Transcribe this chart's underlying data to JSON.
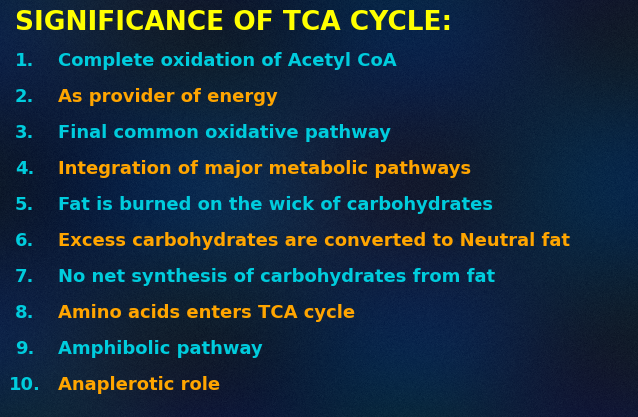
{
  "title": "SIGNIFICANCE OF TCA CYCLE:",
  "title_color": "#FFFF00",
  "title_fontsize": 19,
  "items": [
    "Complete oxidation of Acetyl CoA",
    "As provider of energy",
    "Final common oxidative pathway",
    "Integration of major metabolic pathways",
    "Fat is burned on the wick of carbohydrates",
    "Excess carbohydrates are converted to Neutral fat",
    "No net synthesis of carbohydrates from fat",
    "Amino acids enters TCA cycle",
    "Amphibolic pathway",
    "Anaplerotic role"
  ],
  "number_color": "#00CCDD",
  "item_colors": [
    "#00CCDD",
    "#FFA500",
    "#00CCDD",
    "#FFA500",
    "#00CCDD",
    "#FFA500",
    "#00CCDD",
    "#FFA500",
    "#00CCDD",
    "#FFA500"
  ],
  "item_fontsize": 13,
  "bg_base": [
    0.06,
    0.13,
    0.22
  ],
  "figsize": [
    6.38,
    4.17
  ],
  "dpi": 100
}
